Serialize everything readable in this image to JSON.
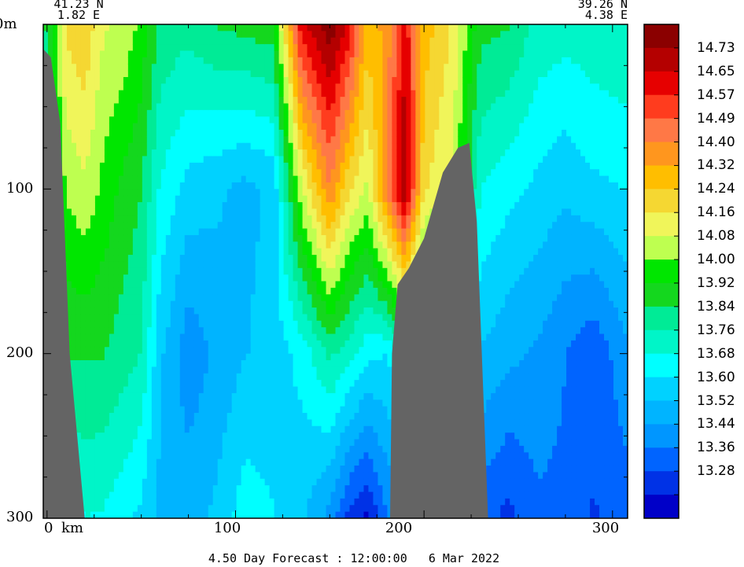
{
  "endpoints": {
    "left_lat": "41.23 N",
    "left_lon": "1.82 E",
    "right_lat": "39.26 N",
    "right_lon": "4.38 E"
  },
  "footer": "4.50 Day Forecast : 12:00:00   6 Mar 2022",
  "colors": {
    "land": "#646464",
    "frame": "#000000"
  },
  "chart_data": {
    "type": "heatmap",
    "title": "",
    "xlabel": "km",
    "ylabel": "m",
    "x_unit_label": "km",
    "y_unit_label": "m",
    "xlim": [
      -2,
      308
    ],
    "ylim": [
      0,
      300
    ],
    "y_inverted": true,
    "x_ticks": [
      0,
      100,
      200,
      300
    ],
    "x_tick_labels": [
      "0",
      "100",
      "200",
      "300"
    ],
    "y_ticks": [
      0,
      100,
      200,
      300
    ],
    "y_tick_labels": [
      "0m",
      "100",
      "200",
      "300"
    ],
    "colorbar": {
      "labels": [
        "14.73",
        "14.65",
        "14.57",
        "14.49",
        "14.40",
        "14.32",
        "14.24",
        "14.16",
        "14.08",
        "14.00",
        "13.92",
        "13.84",
        "13.76",
        "13.68",
        "13.60",
        "13.52",
        "13.44",
        "13.36",
        "13.28"
      ],
      "colors": [
        "#8b0000",
        "#b40000",
        "#e60000",
        "#ff3c1e",
        "#ff7846",
        "#ff961e",
        "#ffbe00",
        "#f5d732",
        "#f0f55a",
        "#beff50",
        "#00e600",
        "#14d71e",
        "#00eb96",
        "#00f5c8",
        "#00ffff",
        "#00d2ff",
        "#00b4ff",
        "#0096ff",
        "#0064ff",
        "#0032e6",
        "#0000c8"
      ]
    },
    "columns": [
      {
        "x": 0,
        "values": [
          13.9,
          13.8,
          13.72,
          13.6
        ]
      },
      {
        "x": 10,
        "values": [
          14.2,
          14.05,
          13.9,
          13.7
        ]
      },
      {
        "x": 20,
        "values": [
          14.25,
          14.1,
          13.9,
          13.75
        ]
      },
      {
        "x": 30,
        "values": [
          14.12,
          14.02,
          13.9,
          13.74
        ]
      },
      {
        "x": 40,
        "values": [
          14.1,
          13.95,
          13.86,
          13.7
        ]
      },
      {
        "x": 50,
        "values": [
          14.02,
          13.9,
          13.82,
          13.66
        ]
      },
      {
        "x": 60,
        "values": [
          13.88,
          13.74,
          13.62,
          13.58
        ]
      },
      {
        "x": 75,
        "values": [
          13.85,
          13.65,
          13.48,
          13.58
        ]
      },
      {
        "x": 90,
        "values": [
          13.9,
          13.62,
          13.55,
          13.62
        ]
      },
      {
        "x": 105,
        "values": [
          13.92,
          13.58,
          13.6,
          13.72
        ]
      },
      {
        "x": 120,
        "values": [
          13.94,
          13.62,
          13.64,
          13.68
        ]
      },
      {
        "x": 135,
        "values": [
          14.6,
          14.1,
          13.7,
          13.62
        ]
      },
      {
        "x": 150,
        "values": [
          14.75,
          14.4,
          13.84,
          13.5
        ]
      },
      {
        "x": 160,
        "values": [
          14.6,
          14.2,
          13.78,
          13.36
        ]
      },
      {
        "x": 170,
        "values": [
          14.3,
          14.1,
          13.7,
          13.3
        ]
      },
      {
        "x": 180,
        "values": [
          14.35,
          14.4,
          13.68,
          13.45
        ]
      },
      {
        "x": 190,
        "values": [
          14.6,
          14.7,
          13.8,
          13.5
        ]
      },
      {
        "x": 200,
        "values": [
          14.3,
          14.2,
          13.7,
          13.55
        ]
      },
      {
        "x": 215,
        "values": [
          14.18,
          14.1,
          13.72,
          13.58
        ]
      },
      {
        "x": 230,
        "values": [
          13.92,
          13.75,
          13.6,
          13.42
        ]
      },
      {
        "x": 245,
        "values": [
          13.9,
          13.7,
          13.55,
          13.36
        ]
      },
      {
        "x": 260,
        "values": [
          13.8,
          13.66,
          13.52,
          13.44
        ]
      },
      {
        "x": 275,
        "values": [
          13.78,
          13.62,
          13.46,
          13.44
        ]
      },
      {
        "x": 290,
        "values": [
          13.8,
          13.66,
          13.4,
          13.38
        ]
      },
      {
        "x": 308,
        "values": [
          13.82,
          13.68,
          13.52,
          13.42
        ]
      }
    ],
    "column_depths": [
      0,
      100,
      200,
      300
    ],
    "bathymetry": [
      {
        "x": -2,
        "depth": 15
      },
      {
        "x": 2,
        "depth": 20
      },
      {
        "x": 7,
        "depth": 60
      },
      {
        "x": 12,
        "depth": 200
      },
      {
        "x": 20,
        "depth": 300
      },
      {
        "x": 182,
        "depth": 300
      },
      {
        "x": 183,
        "depth": 200
      },
      {
        "x": 186,
        "depth": 158
      },
      {
        "x": 192,
        "depth": 148
      },
      {
        "x": 200,
        "depth": 130
      },
      {
        "x": 210,
        "depth": 90
      },
      {
        "x": 218,
        "depth": 75
      },
      {
        "x": 224,
        "depth": 72
      },
      {
        "x": 228,
        "depth": 120
      },
      {
        "x": 232,
        "depth": 240
      },
      {
        "x": 234,
        "depth": 300
      }
    ]
  }
}
